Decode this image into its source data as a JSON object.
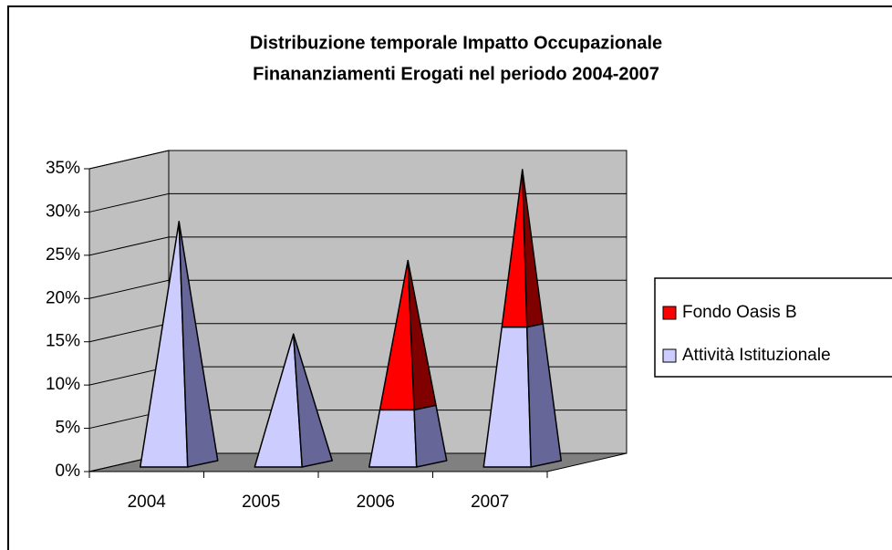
{
  "chart_data": {
    "type": "pyramid3d_stacked",
    "title": [
      "Distribuzione temporale Impatto Occupazionale",
      "Finananziamenti Erogati nel periodo 2004-2007"
    ],
    "categories": [
      "2004",
      "2005",
      "2006",
      "2007"
    ],
    "series": [
      {
        "name": "Attività Istituzionale",
        "color": "#ccccff",
        "side_color": "#666699",
        "values": [
          28,
          15,
          6.5,
          16
        ]
      },
      {
        "name": "Fondo Oasis B",
        "color": "#ff0000",
        "side_color": "#800000",
        "values": [
          0,
          0,
          17,
          18
        ]
      }
    ],
    "ylim": [
      0,
      35
    ],
    "yticks": [
      {
        "value": 0,
        "label": "0%"
      },
      {
        "value": 5,
        "label": "5%"
      },
      {
        "value": 10,
        "label": "10%"
      },
      {
        "value": 15,
        "label": "15%"
      },
      {
        "value": 20,
        "label": "20%"
      },
      {
        "value": 25,
        "label": "25%"
      },
      {
        "value": 30,
        "label": "30%"
      },
      {
        "value": 35,
        "label": "35%"
      }
    ],
    "grid": true
  }
}
